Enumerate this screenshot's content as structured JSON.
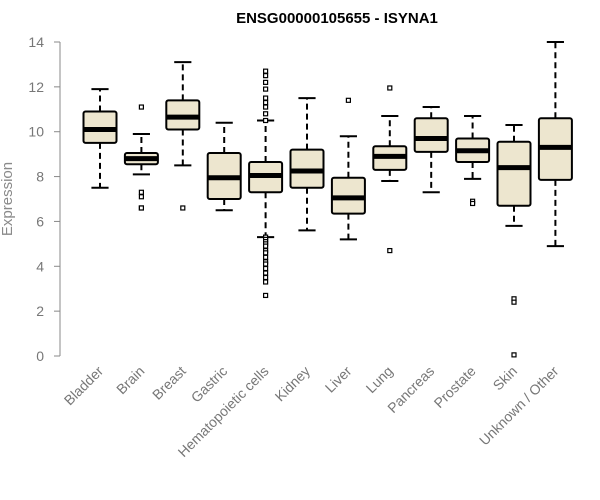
{
  "chart_data": {
    "type": "box",
    "title": "ENSG00000105655 - ISYNA1",
    "xlabel": "",
    "ylabel": "Expression",
    "ylim": [
      0,
      14
    ],
    "yticks": [
      0,
      2,
      4,
      6,
      8,
      10,
      12,
      14
    ],
    "colors": {
      "box_fill": "#ede6cf",
      "stroke": "#000000",
      "axis": "#888888",
      "label": "#777777"
    },
    "categories": [
      "Bladder",
      "Brain",
      "Breast",
      "Gastric",
      "Hematopoietic cells",
      "Kidney",
      "Liver",
      "Lung",
      "Pancreas",
      "Prostate",
      "Skin",
      "Unknown / Other"
    ],
    "boxes": [
      {
        "name": "Bladder",
        "whisker_low": 7.5,
        "q1": 9.5,
        "median": 10.1,
        "q3": 10.9,
        "whisker_high": 11.9,
        "outliers": []
      },
      {
        "name": "Brain",
        "whisker_low": 8.1,
        "q1": 8.55,
        "median": 8.8,
        "q3": 9.05,
        "whisker_high": 9.9,
        "outliers": [
          11.1,
          7.3,
          7.1,
          6.6,
          6.6
        ]
      },
      {
        "name": "Breast",
        "whisker_low": 8.5,
        "q1": 10.1,
        "median": 10.65,
        "q3": 11.4,
        "whisker_high": 13.1,
        "outliers": [
          6.6
        ]
      },
      {
        "name": "Gastric",
        "whisker_low": 6.5,
        "q1": 7.0,
        "median": 7.95,
        "q3": 9.05,
        "whisker_high": 10.4,
        "outliers": []
      },
      {
        "name": "Hematopoietic cells",
        "whisker_low": 5.3,
        "q1": 7.3,
        "median": 8.05,
        "q3": 8.65,
        "whisker_high": 10.5,
        "outliers": [
          12.7,
          12.5,
          12.2,
          11.9,
          11.5,
          11.3,
          11.1,
          10.8,
          10.5,
          5.3,
          5.2,
          5.1,
          5.0,
          4.9,
          4.7,
          4.6,
          4.4,
          4.2,
          4.1,
          3.9,
          3.7,
          3.5,
          3.3,
          2.7
        ]
      },
      {
        "name": "Kidney",
        "whisker_low": 5.6,
        "q1": 7.5,
        "median": 8.25,
        "q3": 9.2,
        "whisker_high": 11.5,
        "outliers": []
      },
      {
        "name": "Liver",
        "whisker_low": 5.2,
        "q1": 6.35,
        "median": 7.05,
        "q3": 7.95,
        "whisker_high": 9.8,
        "outliers": [
          11.4
        ]
      },
      {
        "name": "Lung",
        "whisker_low": 7.8,
        "q1": 8.3,
        "median": 8.9,
        "q3": 9.35,
        "whisker_high": 10.7,
        "outliers": [
          11.95,
          4.7
        ]
      },
      {
        "name": "Pancreas",
        "whisker_low": 7.3,
        "q1": 9.1,
        "median": 9.7,
        "q3": 10.6,
        "whisker_high": 11.1,
        "outliers": []
      },
      {
        "name": "Prostate",
        "whisker_low": 7.9,
        "q1": 8.65,
        "median": 9.15,
        "q3": 9.7,
        "whisker_high": 10.7,
        "outliers": [
          6.9,
          6.8
        ]
      },
      {
        "name": "Skin",
        "whisker_low": 5.8,
        "q1": 6.7,
        "median": 8.4,
        "q3": 9.55,
        "whisker_high": 10.3,
        "outliers": [
          2.55,
          2.4,
          0.05
        ]
      },
      {
        "name": "Unknown / Other",
        "whisker_low": 4.9,
        "q1": 7.85,
        "median": 9.3,
        "q3": 10.6,
        "whisker_high": 14.0,
        "outliers": []
      }
    ]
  }
}
